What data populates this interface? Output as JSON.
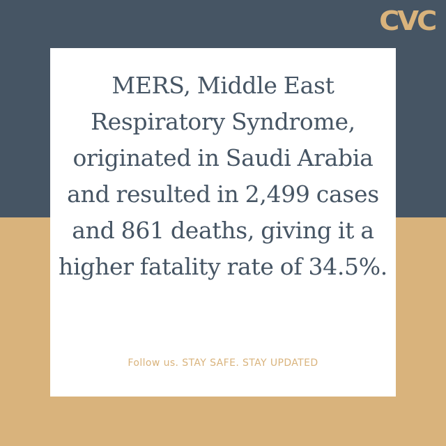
{
  "brand": {
    "logo_text": "CVC"
  },
  "card": {
    "message": "MERS, Middle East Respiratory Syndrome, originated in Saudi Arabia and resulted in 2,499 cases and 861 deaths, giving it a higher fatality rate of 34.5%.",
    "footer": "Follow us. STAY SAFE. STAY UPDATED"
  },
  "colors": {
    "navy": "#465564",
    "sand": "#d9b37c",
    "card_bg": "#ffffff",
    "text": "#465564",
    "accent": "#d9b37c"
  }
}
